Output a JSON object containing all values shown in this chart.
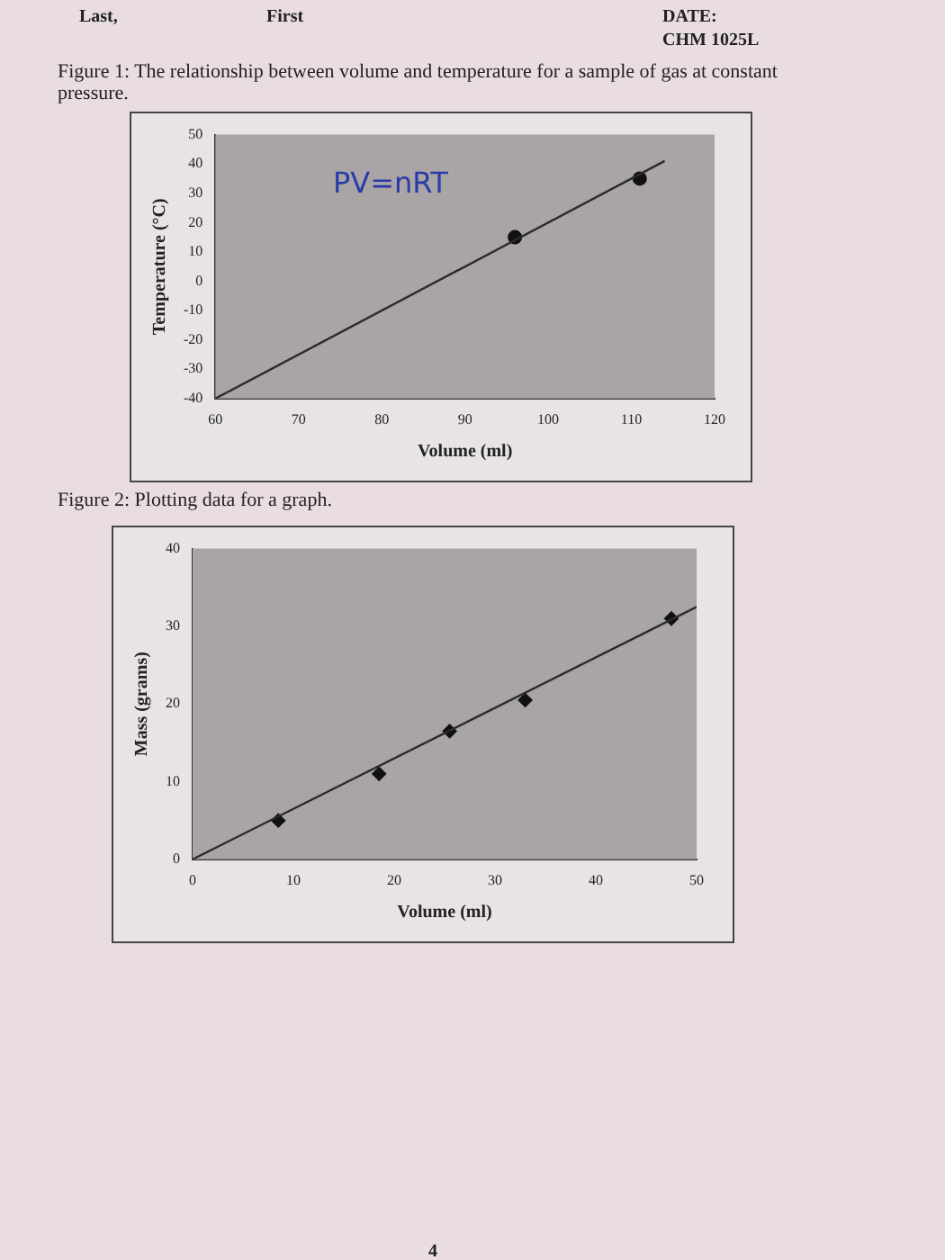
{
  "chart_data": [
    {
      "type": "scatter",
      "title": "Figure 1: The relationship between volume and temperature for a sample of gas at constant pressure.",
      "xlabel": "Volume (ml)",
      "ylabel": "Temperature (°C)",
      "annotations": [
        "Last,",
        "First",
        "DATE:",
        "CHM 1025L",
        "PV=nRT"
      ],
      "xlim": [
        60,
        120
      ],
      "xticks": [
        60,
        70,
        80,
        90,
        100,
        110,
        120
      ],
      "ylim": [
        -40,
        50
      ],
      "yticks": [
        -40,
        -30,
        -20,
        -10,
        0,
        10,
        20,
        30,
        40,
        50
      ],
      "grid": false,
      "legend": false,
      "series": [
        {
          "type": "line",
          "color": "#2b2b2b",
          "marker": "none",
          "x": [
            60,
            114
          ],
          "values": [
            -40,
            41
          ]
        },
        {
          "type": "scatter",
          "color": "#111111",
          "marker": "circle",
          "x": [
            96,
            111
          ],
          "values": [
            15,
            35
          ]
        }
      ]
    },
    {
      "type": "scatter",
      "title": "Figure 2: Plotting data for a graph.",
      "xlabel": "Volume (ml)",
      "ylabel": "Mass (grams)",
      "annotations": [
        "4"
      ],
      "xlim": [
        0,
        50
      ],
      "xticks": [
        0,
        10,
        20,
        30,
        40,
        50
      ],
      "ylim": [
        0,
        40
      ],
      "yticks": [
        0,
        10,
        20,
        30,
        40
      ],
      "grid": false,
      "legend": false,
      "series": [
        {
          "type": "line",
          "color": "#2b2b2b",
          "marker": "none",
          "x": [
            0,
            50
          ],
          "values": [
            0,
            32.5
          ]
        },
        {
          "type": "scatter",
          "color": "#111111",
          "marker": "diamond",
          "x": [
            8.5,
            18.5,
            25.5,
            33,
            47.5
          ],
          "values": [
            5,
            11,
            16.5,
            20.5,
            31
          ]
        }
      ]
    }
  ]
}
